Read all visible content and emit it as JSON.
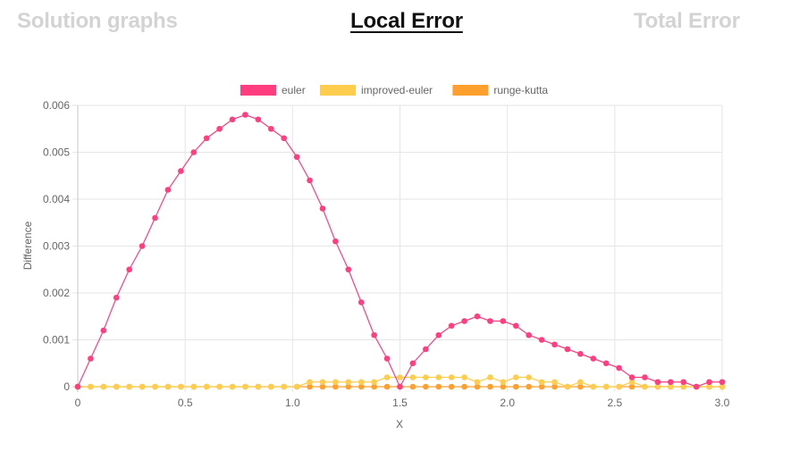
{
  "tabs": [
    {
      "label": "Solution graphs",
      "active": false
    },
    {
      "label": "Local Error",
      "active": true
    },
    {
      "label": "Total Error",
      "active": false
    }
  ],
  "chart_data": {
    "type": "line",
    "xlabel": "X",
    "ylabel": "Difference",
    "xlim": [
      0,
      3
    ],
    "ylim": [
      0,
      0.006
    ],
    "x_ticks": [
      "0",
      "0.5",
      "1.0",
      "1.5",
      "2.0",
      "2.5",
      "3.0"
    ],
    "y_ticks": [
      "0",
      "0.001",
      "0.002",
      "0.003",
      "0.004",
      "0.005",
      "0.006"
    ],
    "grid": true,
    "legend_position": "top-center",
    "x": [
      0,
      0.06,
      0.12,
      0.18,
      0.24,
      0.3,
      0.36,
      0.42,
      0.48,
      0.54,
      0.6,
      0.66,
      0.72,
      0.78,
      0.84,
      0.9,
      0.96,
      1.02,
      1.08,
      1.14,
      1.2,
      1.26,
      1.32,
      1.38,
      1.44,
      1.5,
      1.56,
      1.62,
      1.68,
      1.74,
      1.8,
      1.86,
      1.92,
      1.98,
      2.04,
      2.1,
      2.16,
      2.22,
      2.28,
      2.34,
      2.4,
      2.46,
      2.52,
      2.58,
      2.64,
      2.7,
      2.76,
      2.82,
      2.88,
      2.94,
      3.0
    ],
    "series": [
      {
        "name": "euler",
        "color": "#ff3d7f",
        "values": [
          0,
          0.0006,
          0.0012,
          0.0019,
          0.0025,
          0.003,
          0.0036,
          0.0042,
          0.0046,
          0.005,
          0.0053,
          0.0055,
          0.0057,
          0.0058,
          0.0057,
          0.0055,
          0.0053,
          0.0049,
          0.0044,
          0.0038,
          0.0031,
          0.0025,
          0.0018,
          0.0011,
          0.0006,
          0,
          0.0005,
          0.0008,
          0.0011,
          0.0013,
          0.0014,
          0.0015,
          0.0014,
          0.0014,
          0.0013,
          0.0011,
          0.001,
          0.0009,
          0.0008,
          0.0007,
          0.0006,
          0.0005,
          0.0004,
          0.0002,
          0.0002,
          0.0001,
          0.0001,
          0.0001,
          0,
          0.0001,
          0.0001
        ]
      },
      {
        "name": "improved-euler",
        "color": "#ffcd4d",
        "values": [
          0,
          0,
          0,
          0,
          0,
          0,
          0,
          0,
          0,
          0,
          0,
          0,
          0,
          0,
          0,
          0,
          0,
          0,
          0.0001,
          0.0001,
          0.0001,
          0.0001,
          0.0001,
          0.0001,
          0.0002,
          0.0002,
          0.0002,
          0.0002,
          0.0002,
          0.0002,
          0.0002,
          0.0001,
          0.0002,
          0.0001,
          0.0002,
          0.0002,
          0.0001,
          0.0001,
          0,
          0.0001,
          0,
          0,
          0,
          0.0001,
          0,
          0,
          0,
          0,
          0,
          0,
          0
        ]
      },
      {
        "name": "runge-kutta",
        "color": "#ff9f2e",
        "values": [
          0,
          0,
          0,
          0,
          0,
          0,
          0,
          0,
          0,
          0,
          0,
          0,
          0,
          0,
          0,
          0,
          0,
          0,
          0,
          0,
          0,
          0,
          0,
          0,
          0,
          0,
          0,
          0,
          0,
          0,
          0,
          0,
          0,
          0,
          0,
          0,
          0,
          0,
          0,
          0,
          0,
          0,
          0,
          0,
          0,
          0,
          0,
          0,
          0,
          0,
          0
        ]
      }
    ]
  }
}
